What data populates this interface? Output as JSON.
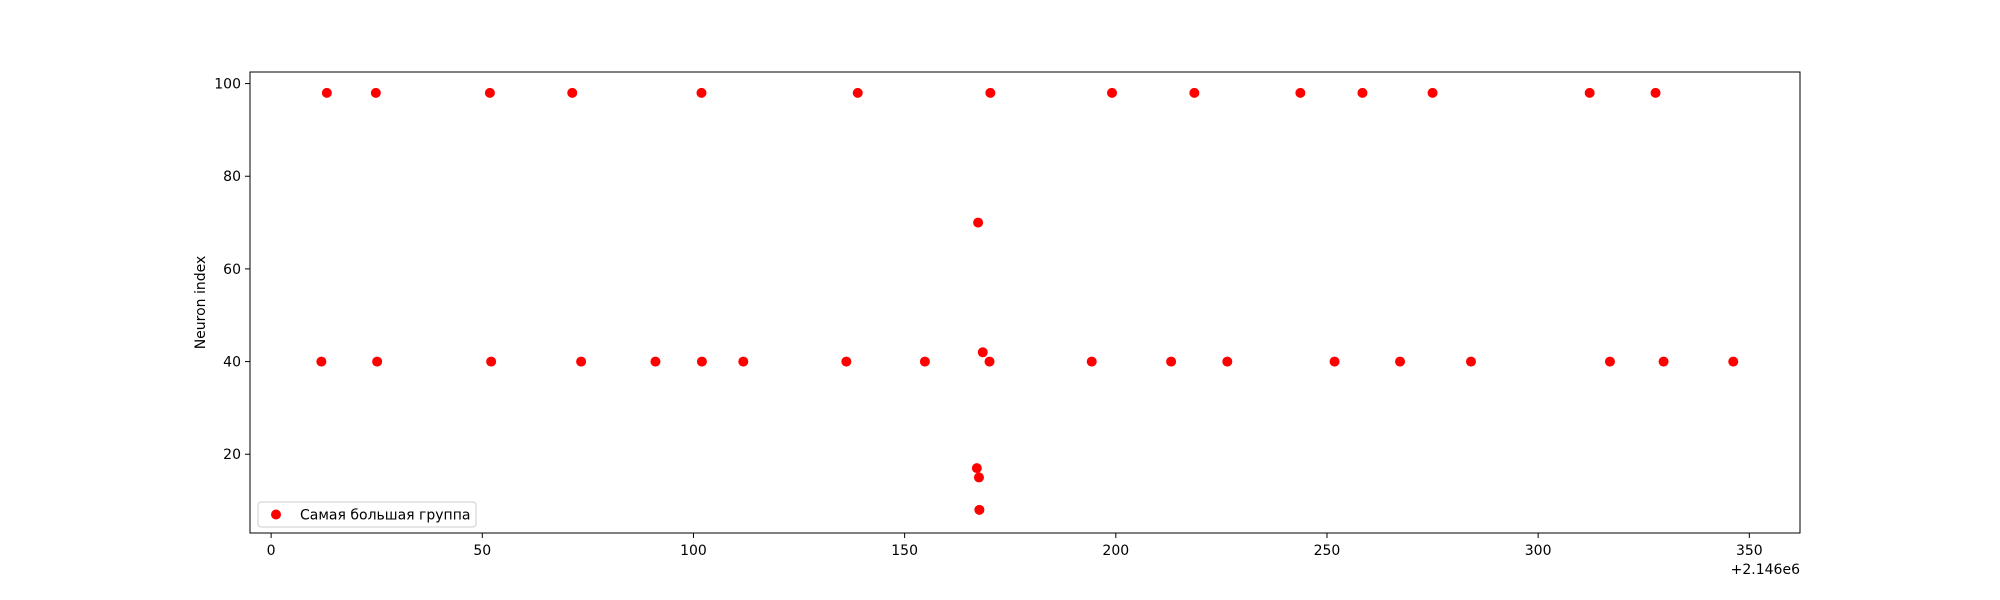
{
  "chart_data": {
    "type": "scatter",
    "title": "",
    "xlabel": "",
    "ylabel": "Neuron index",
    "x_offset_label": "+2.146e6",
    "xlim": [
      -5,
      362
    ],
    "ylim": [
      3,
      102.5
    ],
    "x_ticks": [
      0,
      50,
      100,
      150,
      200,
      250,
      300,
      350
    ],
    "y_ticks": [
      20,
      40,
      60,
      80,
      100
    ],
    "grid": false,
    "legend_position": "lower-left",
    "series": [
      {
        "name": "Самая большая группа",
        "color": "#ff0000",
        "points": [
          [
            13.2,
            98
          ],
          [
            24.8,
            98
          ],
          [
            51.8,
            98
          ],
          [
            71.3,
            98
          ],
          [
            101.9,
            98
          ],
          [
            138.9,
            98
          ],
          [
            170.3,
            98
          ],
          [
            199.1,
            98
          ],
          [
            218.6,
            98
          ],
          [
            243.7,
            98
          ],
          [
            258.4,
            98
          ],
          [
            275.0,
            98
          ],
          [
            312.2,
            98
          ],
          [
            327.8,
            98
          ],
          [
            167.4,
            70
          ],
          [
            168.5,
            42
          ],
          [
            11.9,
            40
          ],
          [
            25.1,
            40
          ],
          [
            52.1,
            40
          ],
          [
            73.4,
            40
          ],
          [
            91.0,
            40
          ],
          [
            102.0,
            40
          ],
          [
            111.8,
            40
          ],
          [
            136.2,
            40
          ],
          [
            154.8,
            40
          ],
          [
            170.1,
            40
          ],
          [
            194.3,
            40
          ],
          [
            213.1,
            40
          ],
          [
            226.4,
            40
          ],
          [
            251.8,
            40
          ],
          [
            267.3,
            40
          ],
          [
            284.1,
            40
          ],
          [
            317.0,
            40
          ],
          [
            329.7,
            40
          ],
          [
            346.2,
            40
          ],
          [
            167.1,
            17
          ],
          [
            167.6,
            15
          ],
          [
            167.7,
            8
          ]
        ]
      }
    ]
  }
}
